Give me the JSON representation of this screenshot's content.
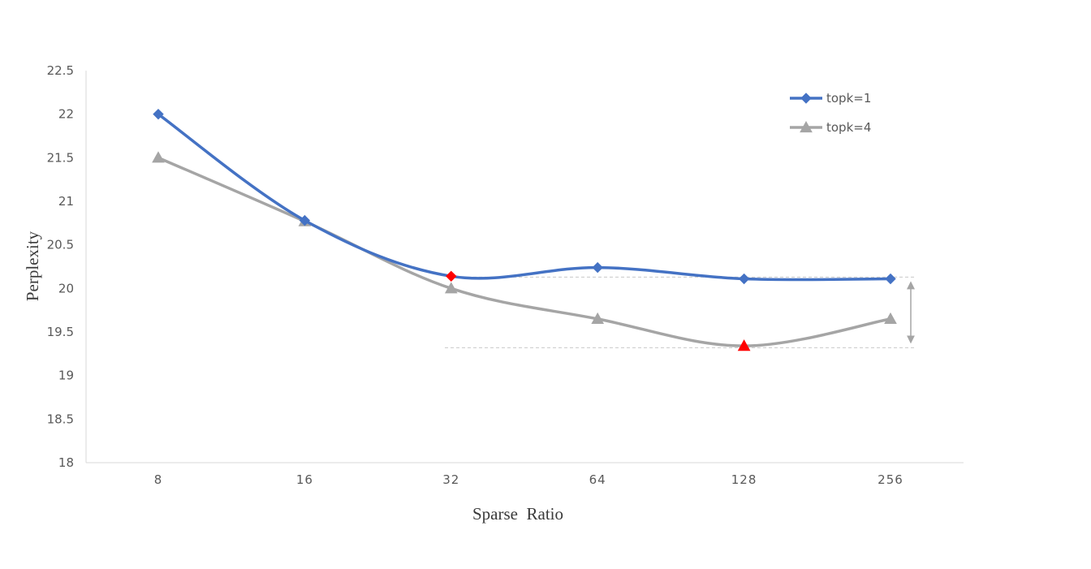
{
  "chart_data": {
    "type": "line",
    "categories": [
      "8",
      "16",
      "32",
      "64",
      "128",
      "256"
    ],
    "series": [
      {
        "name": "topk=1",
        "values": [
          22.0,
          20.78,
          20.14,
          20.24,
          20.11,
          20.11
        ],
        "color": "#4472C4",
        "marker": "diamond",
        "highlight_index": 2,
        "highlight_color": "#FF0000"
      },
      {
        "name": "topk=4",
        "values": [
          21.5,
          20.77,
          20.0,
          19.65,
          19.34,
          19.65
        ],
        "color": "#A5A5A5",
        "marker": "triangle",
        "highlight_index": 4,
        "highlight_color": "#FF0000"
      }
    ],
    "title": "",
    "xlabel": "Sparse  Ratio",
    "ylabel": "Perplexity",
    "ylim": [
      18,
      22.5
    ],
    "yticks": [
      "18",
      "18.5",
      "19",
      "19.5",
      "20",
      "20.5",
      "21",
      "21.5",
      "22",
      "22.5"
    ],
    "grid": false,
    "legend_position": "top-right",
    "annotation": {
      "type": "gap-arrow",
      "from_value": 20.13,
      "to_value": 19.32,
      "color": "#A5A5A5"
    }
  }
}
